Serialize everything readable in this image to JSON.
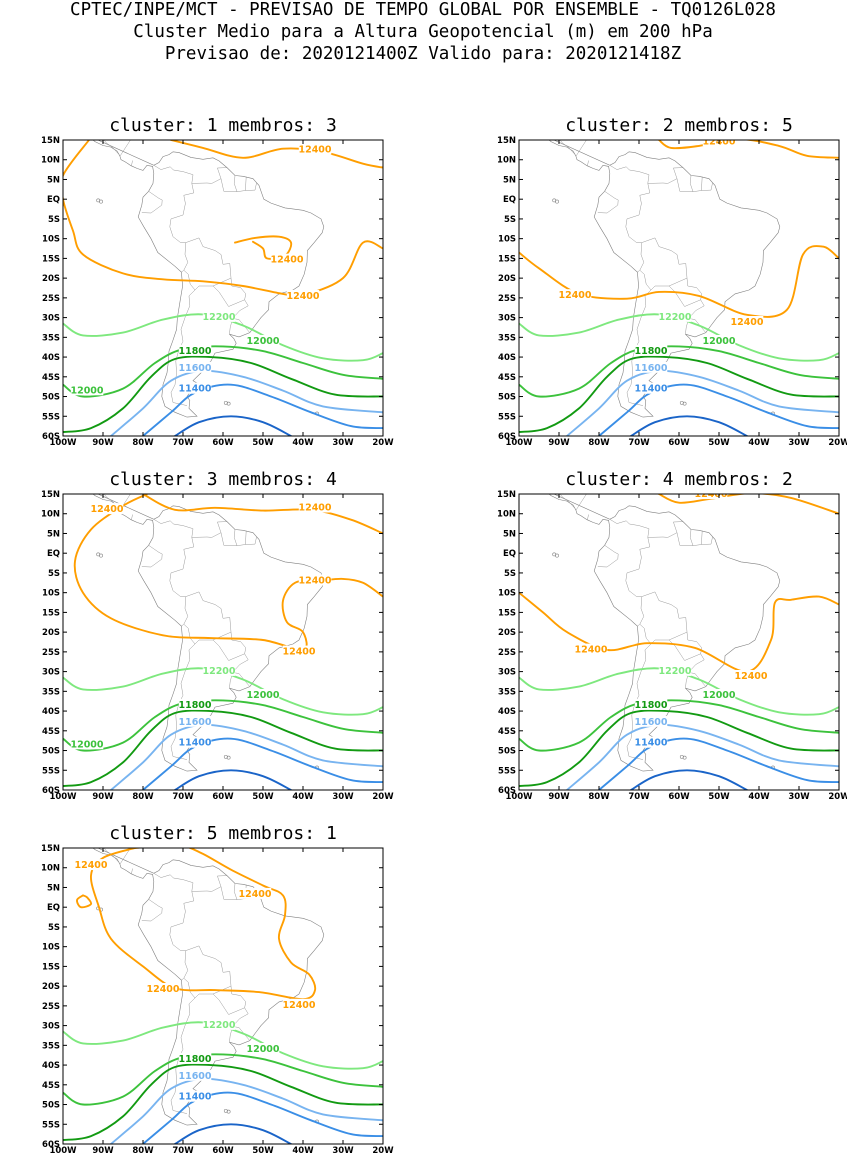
{
  "header": {
    "line1": "CPTEC/INPE/MCT - PREVISAO DE TEMPO GLOBAL POR ENSEMBLE - TQ0126L028",
    "line2": "Cluster Medio para a Altura Geopotencial (m) em 200 hPa",
    "line3": "Previsao de: 2020121400Z   Valido para: 2020121418Z"
  },
  "axes": {
    "lon_labels": [
      "100W",
      "90W",
      "80W",
      "70W",
      "60W",
      "50W",
      "40W",
      "30W",
      "20W"
    ],
    "lat_labels": [
      "15N",
      "10N",
      "5N",
      "EQ",
      "5S",
      "10S",
      "15S",
      "20S",
      "25S",
      "30S",
      "35S",
      "40S",
      "45S",
      "50S",
      "55S",
      "60S"
    ],
    "lon_range": [
      -100,
      -20
    ],
    "lat_range": [
      -60,
      15
    ]
  },
  "colors": {
    "c12400": "#ff9e00",
    "c12200": "#7ee87e",
    "c12000": "#3cc23c",
    "c11800": "#129a12",
    "c11600": "#78b4f0",
    "c11400": "#3a8ee6",
    "c11200": "#1a64c8",
    "coast": "#808080"
  },
  "panels": [
    {
      "title": "cluster: 1  membros: 3",
      "labels": {
        "12400": "12400",
        "12200": "12200",
        "12000": "12000",
        "11800": "11800",
        "11600": "11600",
        "11400": "11400"
      }
    },
    {
      "title": "cluster: 2  membros: 5",
      "labels": {
        "12400": "12400",
        "12200": "12200",
        "12000": "12000",
        "11800": "11800",
        "11600": "11600",
        "11400": "11400"
      }
    },
    {
      "title": "cluster: 3  membros: 4",
      "labels": {
        "12400": "12400",
        "12200": "12200",
        "12000": "12000",
        "11800": "11800",
        "11600": "11600",
        "11400": "11400"
      }
    },
    {
      "title": "cluster: 4  membros: 2",
      "labels": {
        "12400": "12400",
        "12200": "12200",
        "12000": "12000",
        "11800": "11800",
        "11600": "11600",
        "11400": "11400"
      }
    },
    {
      "title": "cluster: 5  membros: 1",
      "labels": {
        "12400": "12400",
        "12200": "12200",
        "12000": "12000",
        "11800": "11800",
        "11600": "11600",
        "11400": "11400"
      }
    }
  ]
}
